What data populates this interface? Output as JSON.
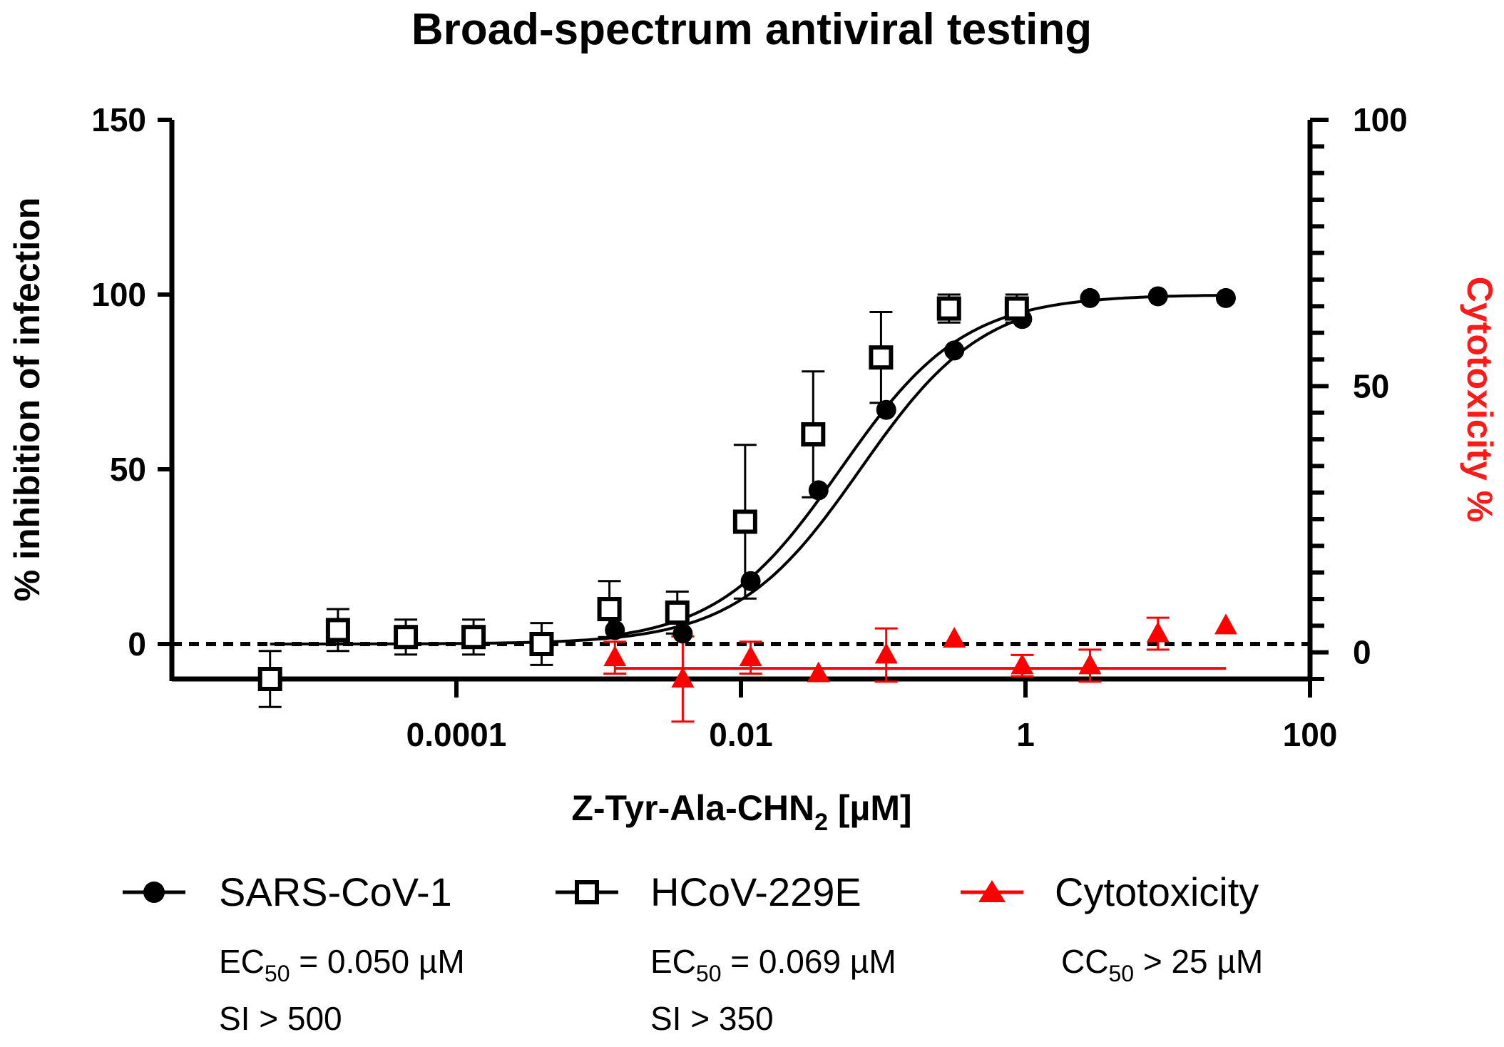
{
  "chart_data": {
    "type": "scatter",
    "title": "Broad-spectrum antiviral testing",
    "xlabel": "Z-Tyr-Ala-CHN",
    "xlabel_subscript": "2",
    "xlabel_suffix": " [µM]",
    "ylabel_left": "% inhibition of infection",
    "ylabel_right": "Cytotoxicity %",
    "x_scale": "log",
    "xlim": [
      1e-06,
      100
    ],
    "ylim_left": [
      -10,
      150
    ],
    "ylim_right": [
      -5,
      100
    ],
    "x_ticks": [
      0.0001,
      0.01,
      1,
      100
    ],
    "x_tick_labels": [
      "0.0001",
      "0.01",
      "1",
      "100"
    ],
    "y_left_ticks": [
      0,
      50,
      100,
      150
    ],
    "y_left_tick_labels": [
      "0",
      "50",
      "100",
      "150"
    ],
    "y_right_major_ticks": [
      0,
      50,
      100
    ],
    "y_right_tick_labels": [
      "0",
      "50",
      "100"
    ],
    "y_right_minor_step": 5,
    "zero_reference_line": true,
    "grid": false,
    "legend_position": "bottom",
    "colors": {
      "sars": "#000000",
      "hcov": "#000000",
      "cytotoxicity": "#ff0000"
    },
    "series": [
      {
        "name": "SARS-CoV-1",
        "axis": "left",
        "marker": "filled-circle",
        "x": [
          0.0013,
          0.0039,
          0.0117,
          0.0351,
          0.105,
          0.316,
          0.948,
          2.84,
          8.53,
          25.6
        ],
        "y": [
          4,
          3,
          18,
          44,
          67,
          84,
          93,
          99,
          99.5,
          99
        ],
        "err": [
          null,
          null,
          null,
          null,
          null,
          null,
          null,
          null,
          null,
          null
        ],
        "fit": {
          "model": "4PL",
          "bottom": 0,
          "top": 100,
          "ec50": 0.05,
          "hill": 1
        },
        "note_ec50": "EC",
        "note_ec50_sub": "50",
        "note_ec50_value": " = 0.050 µM",
        "note_si": "SI > 500"
      },
      {
        "name": "HCoV-229E",
        "axis": "left",
        "marker": "open-square",
        "x": [
          4.9e-06,
          1.47e-05,
          4.41e-05,
          0.000132,
          0.000397,
          0.00119,
          0.00357,
          0.0107,
          0.0322,
          0.0965,
          0.29,
          0.869
        ],
        "y": [
          -10,
          4,
          2,
          2,
          0,
          10,
          9,
          35,
          60,
          82,
          96,
          96
        ],
        "err": [
          8,
          6,
          5,
          5,
          6,
          8,
          6,
          22,
          18,
          13,
          4,
          4
        ],
        "fit": {
          "model": "4PL",
          "bottom": 0,
          "top": 100,
          "ec50": 0.069,
          "hill": 1
        },
        "note_ec50": "EC",
        "note_ec50_sub": "50",
        "note_ec50_value": " = 0.069 µM",
        "note_si": "SI > 350"
      },
      {
        "name": "Cytotoxicity",
        "axis": "right",
        "marker": "filled-triangle",
        "x": [
          0.0013,
          0.0039,
          0.0117,
          0.0351,
          0.105,
          0.316,
          0.948,
          2.84,
          8.53,
          25.6
        ],
        "y": [
          -1,
          -5,
          -1,
          -4,
          -0.5,
          2.5,
          -2.5,
          -2.5,
          3.5,
          5
        ],
        "err": [
          3,
          8,
          3,
          null,
          5,
          null,
          2,
          3,
          3,
          null
        ],
        "fit": {
          "model": "flat",
          "value": -3,
          "x_range": [
            0.0013,
            25.6
          ]
        },
        "note_cc50": "CC",
        "note_cc50_sub": "50",
        "note_cc50_value": " > 25 µM"
      }
    ]
  }
}
